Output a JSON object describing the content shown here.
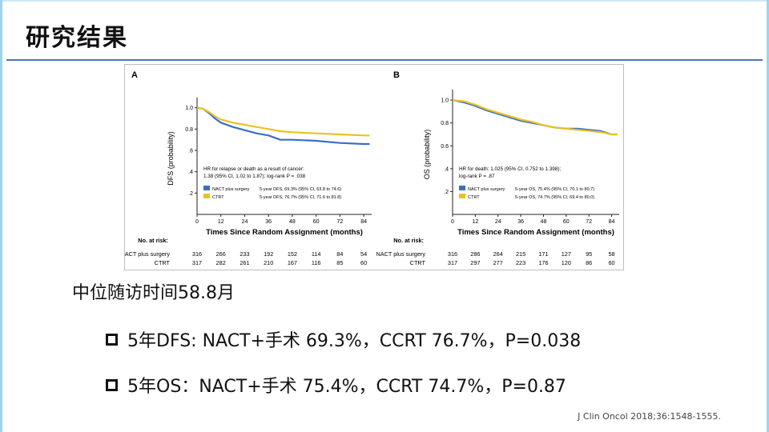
{
  "slide": {
    "title": "研究结果",
    "median_text": "中位随访时间58.8月",
    "bullets": [
      "5年DFS: NACT+手术 69.3%，CCRT 76.7%，P=0.038",
      "5年OS：NACT+手术 75.4%，CCRT 74.7%，P=0.87"
    ],
    "citation": "J Clin Oncol 2018;36:1548-1555."
  },
  "colors": {
    "nact": "#3a6fc4",
    "ctrt": "#e8c225",
    "title_rule": "#4a76b8"
  },
  "chart_data": [
    {
      "type": "line",
      "panel": "A",
      "xlabel": "Times Since Random Assignment (months)",
      "ylabel": "DFS (probability)",
      "x_ticks": [
        0,
        12,
        24,
        36,
        48,
        60,
        72,
        84
      ],
      "y_ticks": [
        0.2,
        0.4,
        0.6,
        0.8,
        1.0
      ],
      "y_tick_labels": [
        ".2",
        ".4",
        ".6",
        "0.8",
        "1.0"
      ],
      "xlim": [
        0,
        88
      ],
      "ylim": [
        0,
        1.05
      ],
      "annotation": [
        "HR for relapse or death as a result of cancer:",
        "1.38 (95% CI, 1.02 to 1.87); log-rank P = .038"
      ],
      "series": [
        {
          "name": "NACT plus surgery",
          "legend_detail": "5-year DFS, 69.3% (95% CI, 63.8 to 74.6)",
          "color": "#3a6fc4",
          "x": [
            0,
            3,
            6,
            9,
            12,
            18,
            24,
            30,
            36,
            42,
            48,
            60,
            72,
            84,
            87
          ],
          "y": [
            1.0,
            0.99,
            0.95,
            0.9,
            0.86,
            0.82,
            0.79,
            0.76,
            0.74,
            0.7,
            0.7,
            0.69,
            0.67,
            0.66,
            0.66
          ]
        },
        {
          "name": "CTRT",
          "legend_detail": "5-year DFS, 76.7% (95% CI, 71.6 to 81.8)",
          "color": "#e8c225",
          "x": [
            0,
            3,
            6,
            9,
            12,
            18,
            24,
            30,
            36,
            42,
            48,
            60,
            72,
            84,
            87
          ],
          "y": [
            1.0,
            0.99,
            0.96,
            0.92,
            0.89,
            0.86,
            0.84,
            0.82,
            0.8,
            0.78,
            0.77,
            0.76,
            0.75,
            0.74,
            0.74
          ]
        }
      ],
      "risk_table": {
        "header": "No. at risk:",
        "rows": [
          {
            "label": "NACT plus surgery",
            "values": [
              "316",
              "266",
              "233",
              "192",
              "152",
              "114",
              "84",
              "54"
            ]
          },
          {
            "label": "CTRT",
            "values": [
              "317",
              "282",
              "261",
              "210",
              "167",
              "116",
              "85",
              "60"
            ]
          }
        ]
      }
    },
    {
      "type": "line",
      "panel": "B",
      "xlabel": "Times Since Random Assignment (months)",
      "ylabel": "OS (probability)",
      "x_ticks": [
        0,
        12,
        24,
        36,
        48,
        60,
        72,
        84
      ],
      "y_ticks": [
        0.2,
        0.4,
        0.6,
        0.8,
        1.0
      ],
      "y_tick_labels": [
        ".2",
        ".4",
        "0.6",
        "0.8",
        "1.0"
      ],
      "xlim": [
        0,
        88
      ],
      "ylim": [
        0,
        1.05
      ],
      "annotation": [
        "HR for death: 1.025 (95% CI, 0.752 to 1.398);",
        "log-rank P = .87"
      ],
      "series": [
        {
          "name": "NACT plus surgery",
          "legend_detail": "5-year OS, 75.4% (95% CI, 70.1 to 80.7)",
          "color": "#3a6fc4",
          "x": [
            0,
            6,
            12,
            18,
            24,
            30,
            36,
            42,
            48,
            54,
            60,
            66,
            72,
            78,
            84,
            87
          ],
          "y": [
            1.0,
            0.98,
            0.95,
            0.91,
            0.88,
            0.85,
            0.82,
            0.8,
            0.78,
            0.76,
            0.75,
            0.75,
            0.74,
            0.73,
            0.7,
            0.7
          ]
        },
        {
          "name": "CTRT",
          "legend_detail": "5-year OS, 74.7% (95% CI, 69.4 to 80.0)",
          "color": "#e8c225",
          "x": [
            0,
            6,
            12,
            18,
            24,
            30,
            36,
            42,
            48,
            54,
            60,
            66,
            72,
            78,
            84,
            87
          ],
          "y": [
            1.0,
            0.99,
            0.96,
            0.92,
            0.89,
            0.86,
            0.83,
            0.81,
            0.78,
            0.76,
            0.75,
            0.74,
            0.73,
            0.72,
            0.7,
            0.7
          ]
        }
      ],
      "risk_table": {
        "header": "No. at risk:",
        "rows": [
          {
            "label": "NACT plus surgery",
            "values": [
              "316",
              "286",
              "264",
              "215",
              "171",
              "127",
              "95",
              "58"
            ]
          },
          {
            "label": "CTRT",
            "values": [
              "317",
              "297",
              "277",
              "223",
              "176",
              "120",
              "86",
              "60"
            ]
          }
        ]
      }
    }
  ]
}
